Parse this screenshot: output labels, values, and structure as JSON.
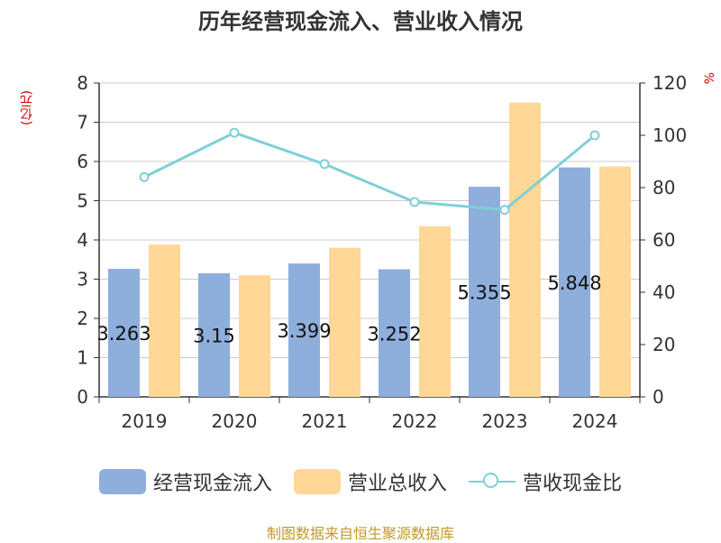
{
  "title": "历年经营现金流入、营业收入情况",
  "left_unit": "(亿元)",
  "right_unit": "%",
  "source": "制图数据来自恒生聚源数据库",
  "colors": {
    "cash_inflow": "#8eaedc",
    "revenue": "#ffd797",
    "ratio": "#7fd0d6",
    "text": "#333333",
    "unit": "#cc0000",
    "source": "#c09a2a"
  },
  "chart_data": {
    "type": "bar",
    "categories": [
      "2019",
      "2020",
      "2021",
      "2022",
      "2023",
      "2024"
    ],
    "series": [
      {
        "name": "经营现金流入",
        "type": "bar",
        "axis": "left",
        "values": [
          3.263,
          3.15,
          3.399,
          3.252,
          5.355,
          5.848
        ],
        "labels": [
          "3.263",
          "3.15",
          "3.399",
          "3.252",
          "5.355",
          "5.848"
        ]
      },
      {
        "name": "营业总收入",
        "type": "bar",
        "axis": "left",
        "values": [
          3.88,
          3.1,
          3.8,
          4.35,
          7.5,
          5.87
        ]
      },
      {
        "name": "营收现金比",
        "type": "line",
        "axis": "right",
        "values": [
          84,
          101,
          89,
          74.5,
          71.5,
          100
        ]
      }
    ],
    "left_axis": {
      "min": 0,
      "max": 8,
      "ticks": [
        "0",
        "1",
        "2",
        "3",
        "4",
        "5",
        "6",
        "7",
        "8"
      ]
    },
    "right_axis": {
      "min": 0,
      "max": 120,
      "ticks": [
        "0",
        "20",
        "40",
        "60",
        "80",
        "100",
        "120"
      ]
    },
    "grid": true,
    "legend": "bottom"
  }
}
